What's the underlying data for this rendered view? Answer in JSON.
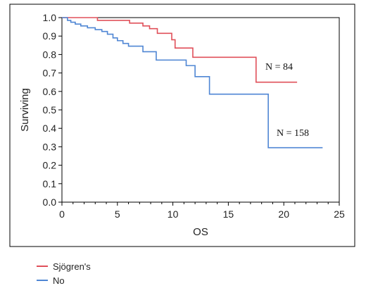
{
  "chart_data": {
    "type": "line",
    "step": true,
    "xlabel": "OS",
    "ylabel": "Surviving",
    "xlim": [
      0,
      25
    ],
    "ylim": [
      0,
      1
    ],
    "x_ticks": [
      "0",
      "5",
      "10",
      "15",
      "20",
      "25"
    ],
    "y_ticks": [
      "0.0",
      "0.1",
      "0.2",
      "0.3",
      "0.4",
      "0.5",
      "0.6",
      "0.7",
      "0.8",
      "0.9",
      "1.0"
    ],
    "grid": false,
    "legend_position": "bottom-left",
    "series": [
      {
        "name": "Sjögren's",
        "color": "#e0505a",
        "annotation": "N = 84",
        "points": [
          [
            0,
            1.0
          ],
          [
            3.2,
            0.985
          ],
          [
            6.1,
            0.97
          ],
          [
            7.3,
            0.955
          ],
          [
            7.9,
            0.94
          ],
          [
            8.6,
            0.915
          ],
          [
            9.9,
            0.88
          ],
          [
            10.2,
            0.835
          ],
          [
            11.8,
            0.785
          ],
          [
            17.5,
            0.65
          ],
          [
            21.2,
            0.65
          ]
        ]
      },
      {
        "name": "No",
        "color": "#4f86d4",
        "annotation": "N = 158",
        "points": [
          [
            0,
            1.0
          ],
          [
            0.5,
            0.985
          ],
          [
            0.8,
            0.975
          ],
          [
            1.2,
            0.965
          ],
          [
            1.7,
            0.955
          ],
          [
            2.3,
            0.945
          ],
          [
            3.0,
            0.935
          ],
          [
            3.6,
            0.925
          ],
          [
            4.1,
            0.91
          ],
          [
            4.6,
            0.89
          ],
          [
            5.0,
            0.875
          ],
          [
            5.5,
            0.86
          ],
          [
            6.0,
            0.845
          ],
          [
            7.3,
            0.815
          ],
          [
            8.5,
            0.77
          ],
          [
            11.2,
            0.74
          ],
          [
            12.0,
            0.68
          ],
          [
            13.3,
            0.585
          ],
          [
            18.6,
            0.295
          ],
          [
            23.5,
            0.295
          ]
        ]
      }
    ]
  }
}
